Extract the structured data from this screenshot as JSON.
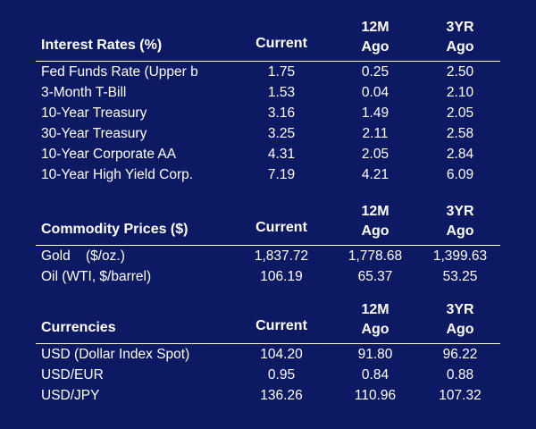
{
  "sections": [
    {
      "title": "Interest Rates (%)",
      "columns": {
        "current": "Current",
        "m12_line1": "12M",
        "m12_line2": "Ago",
        "y3_line1": "3YR",
        "y3_line2": "Ago"
      },
      "rows": [
        {
          "label": "Fed Funds Rate (Upper b",
          "current": "1.75",
          "m12": "0.25",
          "y3": "2.50"
        },
        {
          "label": "3-Month T-Bill",
          "current": "1.53",
          "m12": "0.04",
          "y3": "2.10"
        },
        {
          "label": "10-Year Treasury",
          "current": "3.16",
          "m12": "1.49",
          "y3": "2.05"
        },
        {
          "label": "30-Year Treasury",
          "current": "3.25",
          "m12": "2.11",
          "y3": "2.58"
        },
        {
          "label": "10-Year Corporate AA",
          "current": "4.31",
          "m12": "2.05",
          "y3": "2.84"
        },
        {
          "label": "10-Year High Yield Corp.",
          "current": "7.19",
          "m12": "4.21",
          "y3": "6.09"
        }
      ]
    },
    {
      "title": "Commodity Prices ($)",
      "columns": {
        "current": "Current",
        "m12_line1": "12M",
        "m12_line2": "Ago",
        "y3_line1": "3YR",
        "y3_line2": "Ago"
      },
      "rows": [
        {
          "label": "Gold    ($/oz.)",
          "current": "1,837.72",
          "m12": "1,778.68",
          "y3": "1,399.63"
        },
        {
          "label": "Oil (WTI, $/barrel)",
          "current": "106.19",
          "m12": "65.37",
          "y3": "53.25"
        }
      ]
    },
    {
      "title": "Currencies",
      "columns": {
        "current": "Current",
        "m12_line1": "12M",
        "m12_line2": "Ago",
        "y3_line1": "3YR",
        "y3_line2": "Ago"
      },
      "rows": [
        {
          "label": "USD (Dollar Index Spot)",
          "current": "104.20",
          "m12": "91.80",
          "y3": "96.22"
        },
        {
          "label": "USD/EUR",
          "current": "0.95",
          "m12": "0.84",
          "y3": "0.88"
        },
        {
          "label": "USD/JPY",
          "current": "136.26",
          "m12": "110.96",
          "y3": "107.32"
        }
      ]
    }
  ],
  "colors": {
    "background": "#0c1a63",
    "text": "#ffffff"
  }
}
